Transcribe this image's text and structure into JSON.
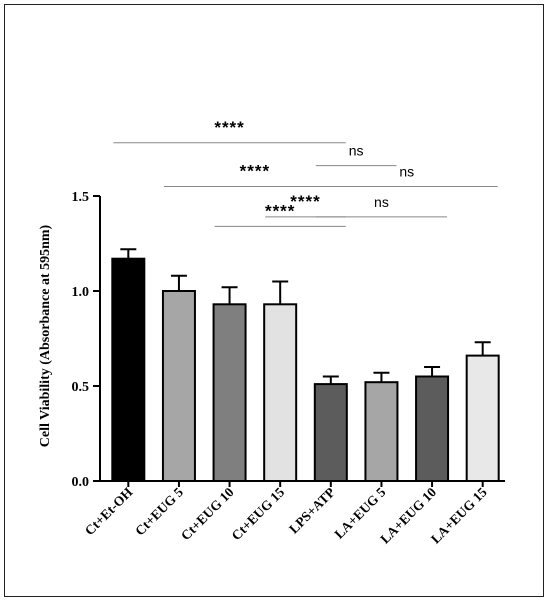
{
  "chart_data": {
    "type": "bar",
    "title": "",
    "xlabel": "",
    "ylabel": "Cell Viability (Absorbance at 595nm)",
    "ylim": [
      0.0,
      1.5
    ],
    "yticks": [
      0.0,
      0.5,
      1.0,
      1.5
    ],
    "ytick_labels": [
      "0.0",
      "0.5",
      "1.0",
      "1.5"
    ],
    "categories": [
      "Ct+Et-OH",
      "Ct+EUG 5",
      "Ct+EUG 10",
      "Ct+EUG 15",
      "LPS+ATP",
      "LA+EUG 5",
      "LA+EUG 10",
      "LA+EUG 15"
    ],
    "values": [
      1.17,
      1.0,
      0.93,
      0.93,
      0.51,
      0.52,
      0.55,
      0.66
    ],
    "errors": [
      0.05,
      0.08,
      0.09,
      0.12,
      0.04,
      0.05,
      0.05,
      0.07
    ],
    "bar_colors": [
      "#000000",
      "#a6a6a6",
      "#7f7f7f",
      "#e2e2e2",
      "#5c5c5c",
      "#a6a6a6",
      "#5c5c5c",
      "#e8e8e8"
    ],
    "grid": false,
    "significance": [
      {
        "from": 0,
        "to": 4,
        "label": "****",
        "level": 1.78
      },
      {
        "from": 1,
        "to": 4,
        "label": "****",
        "level": 1.55
      },
      {
        "from": 2,
        "to": 4,
        "label": "****",
        "level": 1.34
      },
      {
        "from": 3,
        "to": 4,
        "label": "****",
        "level": 1.39
      },
      {
        "from": 4,
        "to": 7,
        "label": "ns",
        "level": 1.55
      },
      {
        "from": 4,
        "to": 5,
        "label": "ns",
        "level": 1.66
      },
      {
        "from": 4,
        "to": 6,
        "label": "ns",
        "level": 1.39
      }
    ]
  }
}
